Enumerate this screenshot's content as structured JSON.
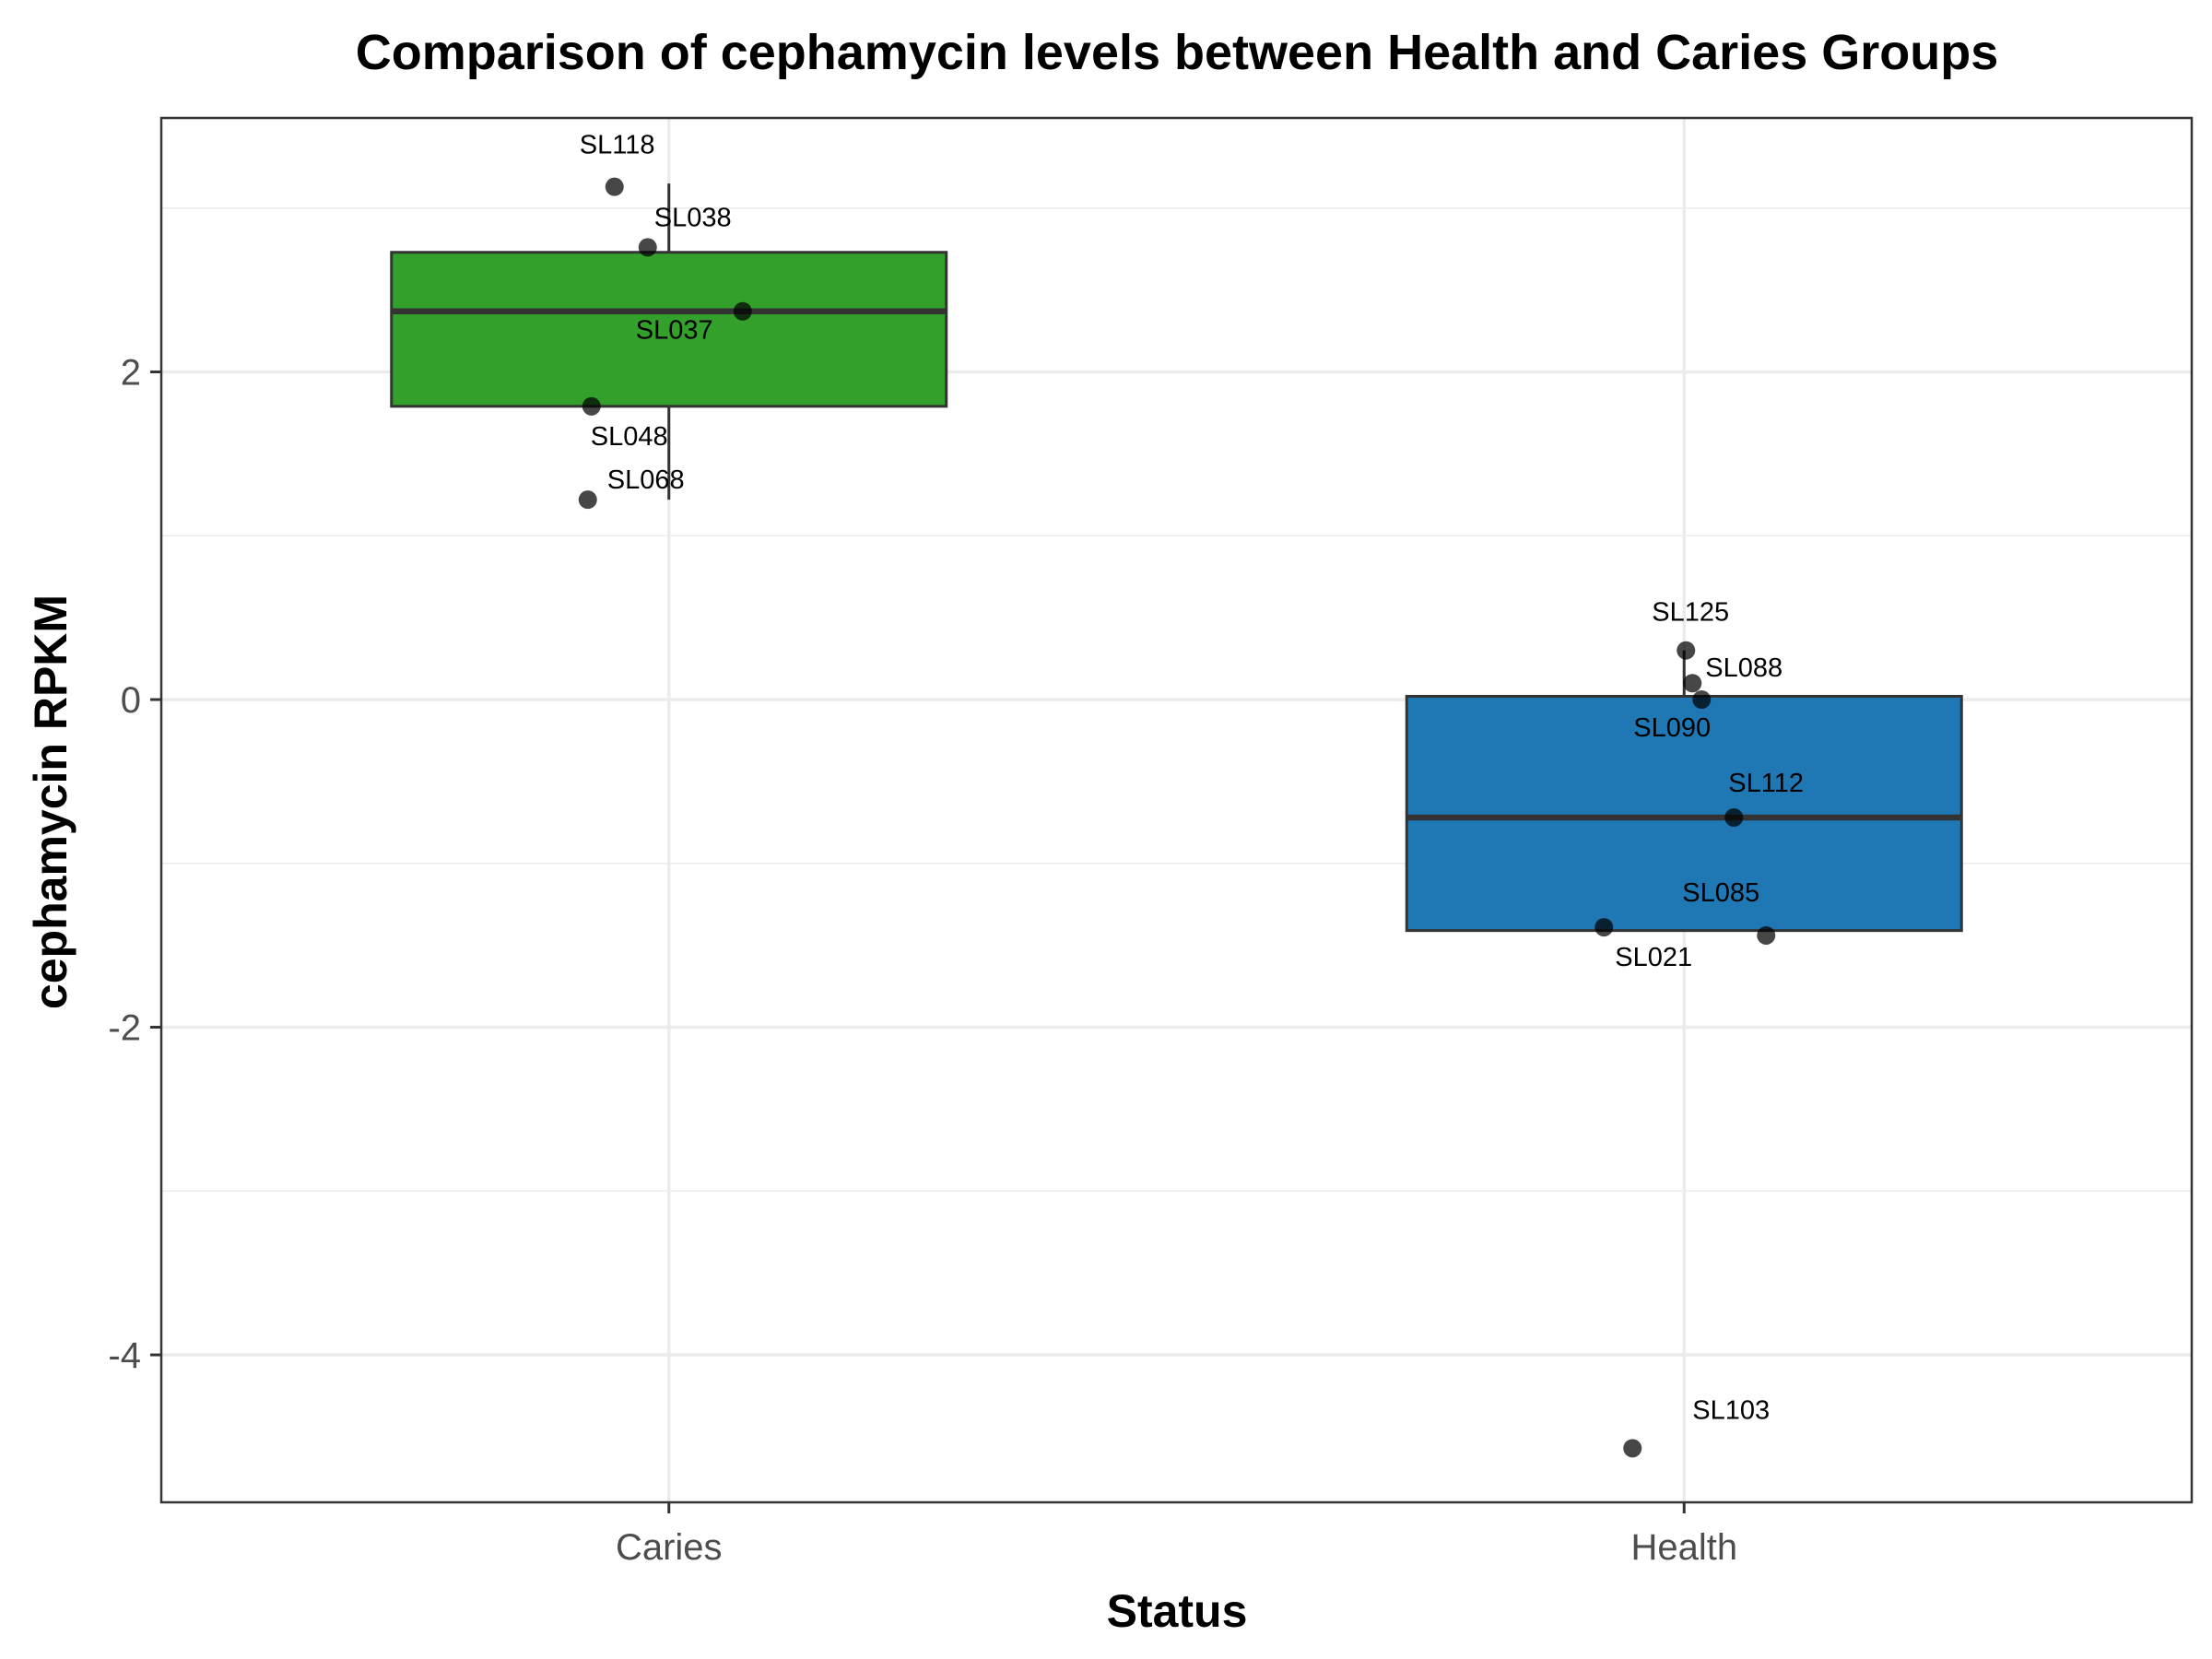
{
  "chart_data": {
    "type": "box",
    "title": "Comparison of cephamycin levels between Health and Caries Groups",
    "xlabel": "Status",
    "ylabel": "cephamycin RPKM",
    "categories": [
      "Caries",
      "Health"
    ],
    "ylim": [
      -4.9,
      3.55
    ],
    "yticks": [
      -4,
      -2,
      0,
      2
    ],
    "grid": true,
    "legend": "none",
    "boxes": [
      {
        "category": "Caries",
        "color": "#33a02c",
        "q1": 1.79,
        "median": 2.37,
        "q3": 2.73,
        "whisker_low": 1.22,
        "whisker_high": 3.15
      },
      {
        "category": "Health",
        "color": "#1f78b4",
        "q1": -1.41,
        "median": -0.72,
        "q3": 0.02,
        "whisker_low": -1.41,
        "whisker_high": 0.3
      }
    ],
    "points": [
      {
        "category": "Caries",
        "label": "SL118",
        "value": 3.13
      },
      {
        "category": "Caries",
        "label": "SL038",
        "value": 2.76
      },
      {
        "category": "Caries",
        "label": "SL037",
        "value": 2.37
      },
      {
        "category": "Caries",
        "label": "SL048",
        "value": 1.79
      },
      {
        "category": "Caries",
        "label": "SL068",
        "value": 1.22
      },
      {
        "category": "Health",
        "label": "SL125",
        "value": 0.3
      },
      {
        "category": "Health",
        "label": "SL088",
        "value": 0.1
      },
      {
        "category": "Health",
        "label": "SL090",
        "value": 0.0
      },
      {
        "category": "Health",
        "label": "SL112",
        "value": -0.72
      },
      {
        "category": "Health",
        "label": "SL085",
        "value": -1.44
      },
      {
        "category": "Health",
        "label": "SL021",
        "value": -1.39
      },
      {
        "category": "Health",
        "label": "SL103",
        "value": -4.57
      }
    ]
  }
}
